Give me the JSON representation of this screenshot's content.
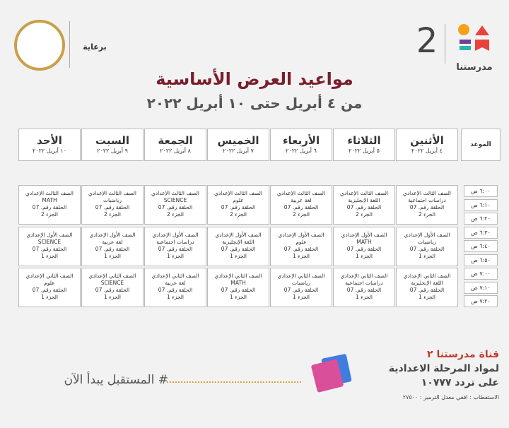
{
  "header": {
    "logo_name": "مدرستنا",
    "logo_number": "2",
    "sponsor": "برعاية"
  },
  "title": "مواعيد العرض الأساسية",
  "subtitle": "من ٤ أبريل حتى ١٠ أبريل ٢٠٢٢",
  "table": {
    "time_header": "الموعد",
    "days": [
      {
        "name": "الأثنين",
        "date": "٤ أبريل ٢٠٢٢"
      },
      {
        "name": "الثلاثاء",
        "date": "٥ أبريل ٢٠٢٢"
      },
      {
        "name": "الأربعاء",
        "date": "٦ أبريل ٢٠٢٢"
      },
      {
        "name": "الخميس",
        "date": "٧ أبريل ٢٠٢٢"
      },
      {
        "name": "الجمعة",
        "date": "٨ أبريل ٢٠٢٢"
      },
      {
        "name": "السبت",
        "date": "٩ أبريل ٢٠٢٢"
      },
      {
        "name": "الأحد",
        "date": "١٠ أبريل ٢٠٢٢"
      }
    ],
    "times": [
      "٦:٠٠ ص",
      "٦:١٠ ص",
      "٦:٢٠ ص",
      "٦:٣٠ ص",
      "٦:٤٠ ص",
      "٦:٥٠ ص",
      "٧:٠٠ ص",
      "٧:١٠ ص",
      "٧:٢٠ ص"
    ],
    "blocks": [
      [
        {
          "grade": "الصف الثالث الإعدادي",
          "subject": "دراسات اجتماعية",
          "episode": "الحلقة رقم. 07",
          "part": "الجزء 2"
        },
        {
          "grade": "الصف الثالث الإعدادي",
          "subject": "اللغة الإنجليزية",
          "episode": "الحلقة رقم. 07",
          "part": "الجزء 2"
        },
        {
          "grade": "الصف الثالث الإعدادي",
          "subject": "لغة عربية",
          "episode": "الحلقة رقم. 07",
          "part": "الجزء 2"
        },
        {
          "grade": "الصف الثالث الإعدادي",
          "subject": "علوم",
          "episode": "الحلقة رقم. 07",
          "part": "الجزء 2"
        },
        {
          "grade": "الصف الثالث الإعدادي",
          "subject": "SCIENCE",
          "episode": "الحلقة رقم. 07",
          "part": "الجزء 2"
        },
        {
          "grade": "الصف الثالث الإعدادي",
          "subject": "رياضيات",
          "episode": "الحلقة رقم. 07",
          "part": "الجزء 2"
        },
        {
          "grade": "الصف الثالث الإعدادي",
          "subject": "MATH",
          "episode": "الحلقة رقم. 07",
          "part": "الجزء 2"
        }
      ],
      [
        {
          "grade": "الصف الأول الإعدادي",
          "subject": "رياضيات",
          "episode": "الحلقة رقم. 07",
          "part": "الجزء 1"
        },
        {
          "grade": "الصف الأول الإعدادي",
          "subject": "MATH",
          "episode": "الحلقة رقم. 07",
          "part": "الجزء 1"
        },
        {
          "grade": "الصف الأول الإعدادي",
          "subject": "علوم",
          "episode": "الحلقة رقم. 07",
          "part": "الجزء 1"
        },
        {
          "grade": "الصف الأول الإعدادي",
          "subject": "اللغة الإنجليزية",
          "episode": "الحلقة رقم. 07",
          "part": "الجزء 1"
        },
        {
          "grade": "الصف الأول الإعدادي",
          "subject": "دراسات اجتماعية",
          "episode": "الحلقة رقم. 07",
          "part": "الجزء 1"
        },
        {
          "grade": "الصف الأول الإعدادي",
          "subject": "لغة عربية",
          "episode": "الحلقة رقم. 07",
          "part": "الجزء 1"
        },
        {
          "grade": "الصف الأول الإعدادي",
          "subject": "SCIENCE",
          "episode": "الحلقة رقم. 07",
          "part": "الجزء 1"
        }
      ],
      [
        {
          "grade": "الصف الثاني الإعدادي",
          "subject": "اللغة الإنجليزية",
          "episode": "الحلقة رقم. 07",
          "part": "الجزء 1"
        },
        {
          "grade": "الصف الثاني الإعدادي",
          "subject": "دراسات اجتماعية",
          "episode": "الحلقة رقم. 07",
          "part": "الجزء 1"
        },
        {
          "grade": "الصف الثاني الإعدادي",
          "subject": "رياضيات",
          "episode": "الحلقة رقم. 07",
          "part": "الجزء 1"
        },
        {
          "grade": "الصف الثاني الإعدادي",
          "subject": "MATH",
          "episode": "الحلقة رقم. 07",
          "part": "الجزء 1"
        },
        {
          "grade": "الصف الثاني الإعدادي",
          "subject": "لغة عربية",
          "episode": "الحلقة رقم. 07",
          "part": "الجزء 1"
        },
        {
          "grade": "الصف الثاني الإعدادي",
          "subject": "SCIENCE",
          "episode": "الحلقة رقم. 07",
          "part": "الجزء 1"
        },
        {
          "grade": "الصف الثاني الإعدادي",
          "subject": "علوم",
          "episode": "الحلقة رقم. 07",
          "part": "الجزء 1"
        }
      ]
    ]
  },
  "footer": {
    "hashtag": "# المستقبل يبدأ الآن",
    "channel": "قناة مدرستنا ٢",
    "audience": "لمواد المرحلة الاعدادية",
    "frequency": "على تردد ١٠٧٧٧",
    "tech": "الاستقطاب : افقي معدل الترميز : ٢٧٥٠٠"
  }
}
